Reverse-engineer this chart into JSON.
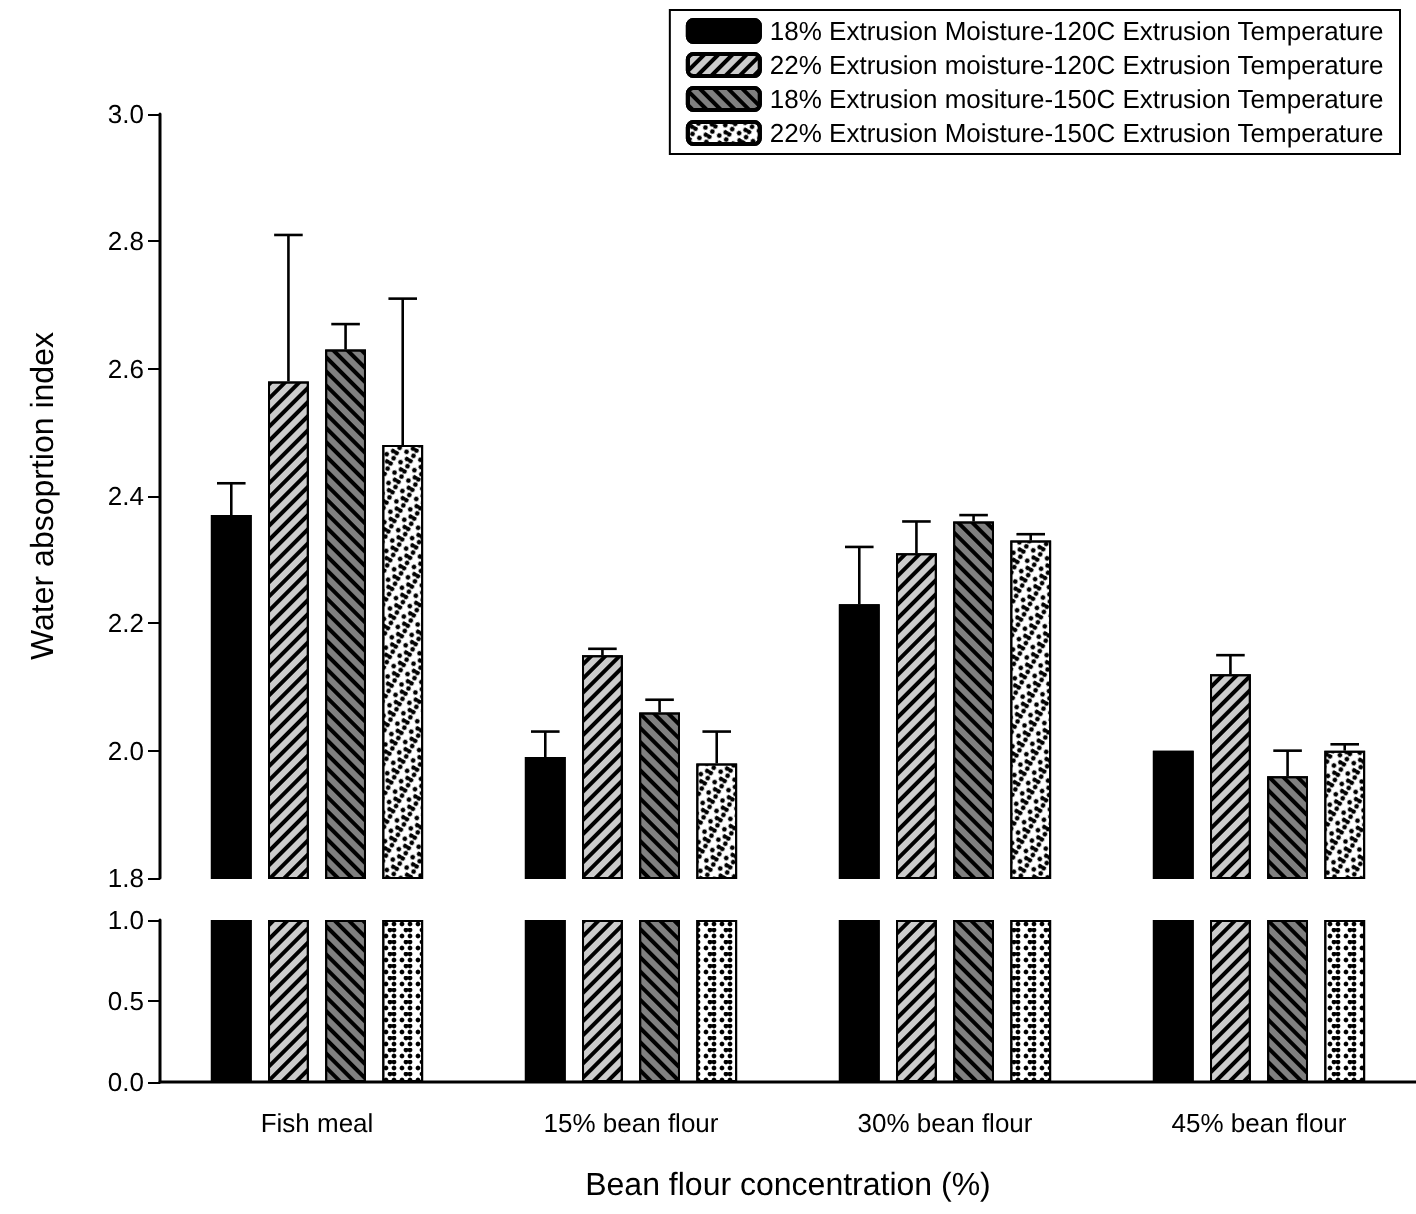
{
  "chart_data": [
    {
      "type": "bar",
      "ylabel": "Water absoprtion index",
      "categories": [
        null,
        null,
        null,
        null
      ],
      "ylim": [
        1.8,
        3.0
      ],
      "yticks": [
        {
          "value": 1.8,
          "label": "1.8"
        },
        {
          "value": 2.0,
          "label": "2.0"
        },
        {
          "value": 2.2,
          "label": "2.2"
        },
        {
          "value": 2.4,
          "label": "2.4"
        },
        {
          "value": 2.6,
          "label": "2.6"
        },
        {
          "value": 2.8,
          "label": "2.8"
        },
        {
          "value": 3.0,
          "label": "3.0"
        }
      ],
      "grid": false,
      "legend": "top right",
      "tick_labels": "y",
      "series": [
        {
          "name": "18% Extrusion Moisture-120C Extrusion Temperature",
          "color": "#000000",
          "values": [
            2.37,
            1.99,
            2.23,
            2.0
          ],
          "errors": [
            [
              2.37,
              2.42
            ],
            [
              1.99,
              2.03
            ],
            [
              2.23,
              2.32
            ],
            null
          ]
        },
        {
          "name": "22% Extrusion moisture-120C Extrusion Temperature",
          "color": "#cccccc",
          "values": [
            2.58,
            2.15,
            2.31,
            2.12
          ],
          "errors": [
            [
              2.58,
              2.81
            ],
            [
              2.15,
              2.16
            ],
            [
              2.31,
              2.36
            ],
            [
              2.12,
              2.15
            ]
          ]
        },
        {
          "name": "18% Extrusion mositure-150C Extrusion Temperature",
          "color": "#808080",
          "values": [
            2.63,
            2.06,
            2.36,
            1.96
          ],
          "errors": [
            [
              2.63,
              2.67
            ],
            [
              2.06,
              2.08
            ],
            [
              2.36,
              2.37
            ],
            [
              1.96,
              2.0
            ]
          ]
        },
        {
          "name": "22% Extrusion Moisture-150C Extrusion Temperature",
          "color": "#ffffff",
          "values": [
            2.48,
            1.98,
            2.33,
            2.0
          ],
          "errors": [
            [
              2.48,
              2.71
            ],
            [
              1.98,
              2.03
            ],
            [
              2.33,
              2.34
            ],
            [
              2.0,
              2.01
            ]
          ]
        }
      ]
    },
    {
      "type": "bar",
      "xlabel": "Bean flour concentration (%)",
      "categories": [
        "Fish meal",
        "15% bean flour",
        "30% bean flour",
        "45% bean flour"
      ],
      "ylim": [
        0,
        1.0
      ],
      "yticks": [
        {
          "value": 0,
          "label": "0.0"
        },
        {
          "value": 0.5,
          "label": "0.5"
        },
        {
          "value": 1.0,
          "label": "1.0"
        }
      ],
      "grid": false,
      "series": [
        {
          "color": "#000000",
          "values": [
            1.0,
            1.0,
            1.0,
            1.0
          ]
        },
        {
          "color": "#cccccc",
          "values": [
            1.0,
            1.0,
            1.0,
            1.0
          ]
        },
        {
          "color": "#808080",
          "values": [
            1.0,
            1.0,
            1.0,
            1.0
          ]
        },
        {
          "color": "#ffffff",
          "values": [
            1.0,
            1.0,
            1.0,
            1.0
          ]
        }
      ]
    }
  ]
}
